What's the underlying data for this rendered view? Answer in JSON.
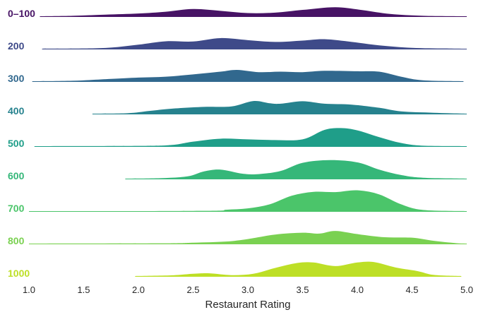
{
  "chart_data": {
    "type": "ridgeline",
    "title": "",
    "xlabel": "Restaurant Rating",
    "ylabel": "",
    "xlim": [
      1.0,
      5.0
    ],
    "x_ticks": [
      "1.0",
      "1.5",
      "2.0",
      "2.5",
      "3.0",
      "3.5",
      "4.0",
      "4.5",
      "5.0"
    ],
    "grid": false,
    "series": [
      {
        "name": "0–100",
        "color": "#471365",
        "range": [
          1.1,
          5.0
        ],
        "density": [
          [
            1.1,
            0
          ],
          [
            1.4,
            0.02
          ],
          [
            1.7,
            0.07
          ],
          [
            2.0,
            0.12
          ],
          [
            2.25,
            0.2
          ],
          [
            2.5,
            0.32
          ],
          [
            2.75,
            0.24
          ],
          [
            3.0,
            0.14
          ],
          [
            3.25,
            0.16
          ],
          [
            3.5,
            0.28
          ],
          [
            3.8,
            0.4
          ],
          [
            4.05,
            0.27
          ],
          [
            4.3,
            0.1
          ],
          [
            4.6,
            0.02
          ],
          [
            5.0,
            0
          ]
        ]
      },
      {
        "name": "200",
        "color": "#3e4a89",
        "range": [
          1.12,
          5.0
        ],
        "density": [
          [
            1.12,
            0
          ],
          [
            1.5,
            0.01
          ],
          [
            1.75,
            0.05
          ],
          [
            2.0,
            0.18
          ],
          [
            2.25,
            0.33
          ],
          [
            2.5,
            0.32
          ],
          [
            2.75,
            0.47
          ],
          [
            3.0,
            0.38
          ],
          [
            3.25,
            0.3
          ],
          [
            3.5,
            0.36
          ],
          [
            3.7,
            0.42
          ],
          [
            3.95,
            0.3
          ],
          [
            4.2,
            0.15
          ],
          [
            4.5,
            0.04
          ],
          [
            4.8,
            0.01
          ],
          [
            5.0,
            0
          ]
        ]
      },
      {
        "name": "300",
        "color": "#31688e",
        "range": [
          1.03,
          4.97
        ],
        "density": [
          [
            1.03,
            0
          ],
          [
            1.4,
            0.02
          ],
          [
            1.75,
            0.1
          ],
          [
            2.0,
            0.16
          ],
          [
            2.25,
            0.2
          ],
          [
            2.5,
            0.3
          ],
          [
            2.75,
            0.42
          ],
          [
            2.9,
            0.5
          ],
          [
            3.1,
            0.4
          ],
          [
            3.3,
            0.42
          ],
          [
            3.5,
            0.4
          ],
          [
            3.7,
            0.46
          ],
          [
            4.0,
            0.44
          ],
          [
            4.2,
            0.42
          ],
          [
            4.4,
            0.2
          ],
          [
            4.6,
            0.04
          ],
          [
            4.97,
            0
          ]
        ]
      },
      {
        "name": "400",
        "color": "#26828e",
        "range": [
          1.58,
          5.0
        ],
        "density": [
          [
            1.58,
            0
          ],
          [
            1.9,
            0.02
          ],
          [
            2.1,
            0.12
          ],
          [
            2.3,
            0.22
          ],
          [
            2.6,
            0.3
          ],
          [
            2.85,
            0.32
          ],
          [
            3.05,
            0.56
          ],
          [
            3.2,
            0.46
          ],
          [
            3.3,
            0.44
          ],
          [
            3.5,
            0.55
          ],
          [
            3.7,
            0.44
          ],
          [
            3.95,
            0.4
          ],
          [
            4.2,
            0.26
          ],
          [
            4.4,
            0.1
          ],
          [
            4.7,
            0.04
          ],
          [
            5.0,
            0
          ]
        ]
      },
      {
        "name": "500",
        "color": "#1f9e89",
        "range": [
          1.05,
          5.0
        ],
        "density": [
          [
            1.05,
            0
          ],
          [
            2.0,
            0.01
          ],
          [
            2.3,
            0.05
          ],
          [
            2.5,
            0.2
          ],
          [
            2.75,
            0.33
          ],
          [
            3.0,
            0.3
          ],
          [
            3.25,
            0.27
          ],
          [
            3.5,
            0.3
          ],
          [
            3.7,
            0.72
          ],
          [
            3.85,
            0.8
          ],
          [
            4.0,
            0.7
          ],
          [
            4.2,
            0.4
          ],
          [
            4.4,
            0.14
          ],
          [
            4.6,
            0.02
          ],
          [
            5.0,
            0
          ]
        ]
      },
      {
        "name": "600",
        "color": "#35b779",
        "range": [
          1.88,
          5.0
        ],
        "density": [
          [
            1.88,
            0
          ],
          [
            2.2,
            0.02
          ],
          [
            2.45,
            0.1
          ],
          [
            2.6,
            0.32
          ],
          [
            2.75,
            0.4
          ],
          [
            2.95,
            0.22
          ],
          [
            3.1,
            0.2
          ],
          [
            3.3,
            0.34
          ],
          [
            3.5,
            0.7
          ],
          [
            3.75,
            0.82
          ],
          [
            4.0,
            0.72
          ],
          [
            4.2,
            0.4
          ],
          [
            4.4,
            0.16
          ],
          [
            4.6,
            0.04
          ],
          [
            5.0,
            0
          ]
        ]
      },
      {
        "name": "700",
        "color": "#4bc56a",
        "range": [
          1.0,
          5.0
        ],
        "density": [
          [
            1.0,
            0
          ],
          [
            2.6,
            0.01
          ],
          [
            2.8,
            0.06
          ],
          [
            3.0,
            0.12
          ],
          [
            3.2,
            0.3
          ],
          [
            3.4,
            0.68
          ],
          [
            3.6,
            0.85
          ],
          [
            3.8,
            0.84
          ],
          [
            4.0,
            0.92
          ],
          [
            4.2,
            0.74
          ],
          [
            4.4,
            0.3
          ],
          [
            4.6,
            0.05
          ],
          [
            5.0,
            0
          ]
        ]
      },
      {
        "name": "800",
        "color": "#7ad151",
        "range": [
          1.0,
          5.0
        ],
        "density": [
          [
            1.0,
            0
          ],
          [
            2.2,
            0.01
          ],
          [
            2.5,
            0.04
          ],
          [
            2.8,
            0.09
          ],
          [
            3.0,
            0.2
          ],
          [
            3.25,
            0.4
          ],
          [
            3.5,
            0.48
          ],
          [
            3.65,
            0.44
          ],
          [
            3.8,
            0.56
          ],
          [
            4.0,
            0.42
          ],
          [
            4.25,
            0.28
          ],
          [
            4.5,
            0.26
          ],
          [
            4.7,
            0.12
          ],
          [
            4.9,
            0.02
          ],
          [
            5.0,
            0
          ]
        ]
      },
      {
        "name": "1000",
        "color": "#bddf26",
        "range": [
          1.97,
          4.95
        ],
        "density": [
          [
            1.97,
            0
          ],
          [
            2.3,
            0.03
          ],
          [
            2.5,
            0.1
          ],
          [
            2.65,
            0.12
          ],
          [
            2.85,
            0.04
          ],
          [
            3.05,
            0.1
          ],
          [
            3.25,
            0.36
          ],
          [
            3.45,
            0.58
          ],
          [
            3.6,
            0.6
          ],
          [
            3.8,
            0.44
          ],
          [
            4.0,
            0.6
          ],
          [
            4.15,
            0.62
          ],
          [
            4.35,
            0.38
          ],
          [
            4.55,
            0.22
          ],
          [
            4.7,
            0.05
          ],
          [
            4.95,
            0
          ]
        ]
      }
    ]
  }
}
